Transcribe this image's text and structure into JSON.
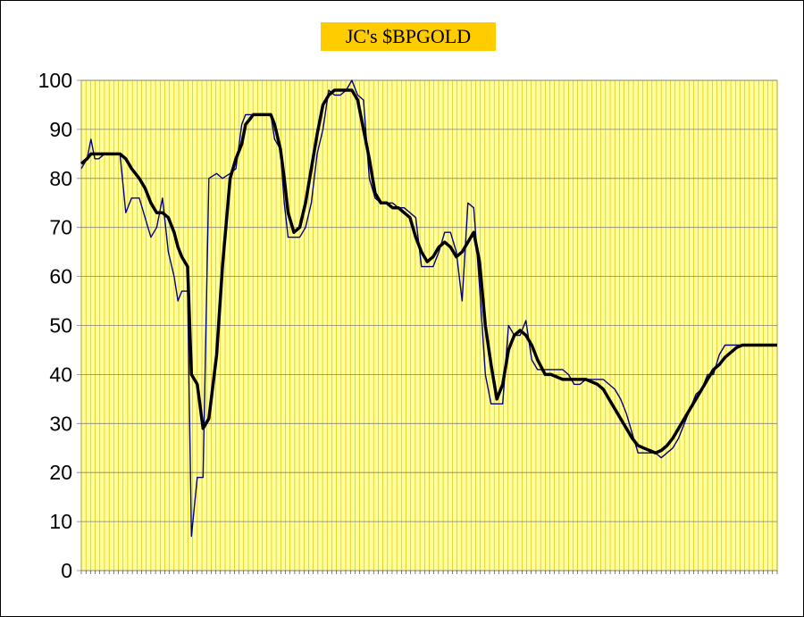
{
  "chart_data": {
    "type": "line",
    "title": "JC's $BPGOLD",
    "xlabel": "",
    "ylabel": "",
    "ylim": [
      0,
      100
    ],
    "yticks": [
      0,
      10,
      20,
      30,
      40,
      50,
      60,
      70,
      80,
      90,
      100
    ],
    "grid": true,
    "legend": "none",
    "colors": {
      "plot_background": "#ffff99",
      "gridlines": "#e0b400",
      "title_background": "#ffcc00",
      "raw_series": "#000080",
      "smoothed_series": "#000000"
    },
    "x_tick_labels_note": "dense date labels along the x-axis (illegible at this size)",
    "x": [
      0,
      3,
      5,
      7,
      9,
      12,
      16,
      20,
      23,
      26,
      30,
      33,
      36,
      39,
      42,
      45,
      48,
      50,
      52,
      55,
      57,
      60,
      63,
      66,
      70,
      73,
      77,
      80,
      83,
      85,
      87,
      89,
      90,
      92,
      95,
      98,
      100,
      103,
      105,
      107,
      110,
      113,
      116,
      119,
      122,
      125,
      128,
      131,
      134,
      137,
      140,
      143,
      146,
      149,
      152,
      155,
      158,
      161,
      164,
      167,
      170,
      173,
      176,
      179,
      182,
      185,
      188,
      191,
      194,
      197,
      200,
      203,
      206,
      209,
      212,
      215,
      218,
      221,
      224,
      227,
      230,
      233,
      236,
      240
    ],
    "series": [
      {
        "values": [
          82,
          84,
          88,
          84,
          84,
          85,
          85,
          85,
          73,
          76,
          76,
          72,
          68,
          70,
          76,
          65,
          60,
          55,
          57,
          57,
          7,
          19,
          19,
          80,
          81,
          80,
          81,
          82,
          91,
          93,
          93,
          93,
          93,
          93,
          93,
          93,
          88,
          86,
          75,
          68,
          68,
          68,
          70,
          75,
          85,
          90,
          98,
          97,
          97,
          98,
          100,
          97,
          96,
          80,
          76,
          75,
          75,
          75,
          74,
          74,
          73,
          72,
          62,
          62,
          62,
          65,
          69,
          69,
          65,
          55,
          75,
          74,
          58,
          40,
          34,
          34,
          34,
          50,
          48,
          48,
          51,
          43,
          41,
          41
        ]
      },
      {
        "values": [
          83,
          84,
          85,
          85,
          85,
          85,
          85,
          85,
          84,
          82,
          80,
          78,
          75,
          73,
          73,
          72,
          69,
          66,
          64,
          62,
          40,
          38,
          29,
          31,
          44,
          62,
          80,
          84,
          87,
          91,
          92,
          93,
          93,
          93,
          93,
          93,
          91,
          86,
          80,
          73,
          69,
          70,
          75,
          82,
          89,
          95,
          97,
          98,
          98,
          98,
          98,
          96,
          90,
          84,
          77,
          75,
          75,
          74,
          74,
          73,
          72,
          68,
          65,
          63,
          64,
          66,
          67,
          66,
          64,
          65,
          67,
          69,
          63,
          50,
          42,
          35,
          38,
          45,
          48,
          49,
          48,
          46,
          43,
          40
        ]
      }
    ],
    "x_extended": [
      243,
      246,
      249,
      252,
      255,
      258,
      261,
      264,
      267,
      270,
      273,
      276,
      279,
      282,
      285,
      288,
      291,
      294,
      297,
      300,
      303,
      306,
      309,
      312,
      315,
      318,
      321,
      324,
      327,
      330,
      333,
      336,
      339,
      342,
      345,
      348,
      351,
      354,
      357,
      360
    ],
    "series_extended": [
      {
        "values": [
          41,
          41,
          41,
          40,
          38,
          38,
          39,
          39,
          39,
          39,
          38,
          37,
          35,
          32,
          28,
          24,
          24,
          24,
          24,
          23,
          24,
          25,
          27,
          30,
          33,
          36,
          37,
          40,
          40,
          44,
          46,
          46,
          46,
          46,
          46,
          46,
          46,
          46,
          46,
          46
        ]
      },
      {
        "values": [
          40,
          39.5,
          39,
          39,
          39,
          39,
          39,
          38.5,
          38,
          37,
          35,
          33,
          31,
          29,
          27,
          25.5,
          25,
          24.5,
          24,
          24.5,
          25.5,
          27,
          29,
          31,
          33,
          35,
          37,
          39,
          41,
          42,
          43.5,
          44.5,
          45.5,
          46,
          46,
          46,
          46,
          46,
          46,
          46
        ]
      }
    ]
  }
}
